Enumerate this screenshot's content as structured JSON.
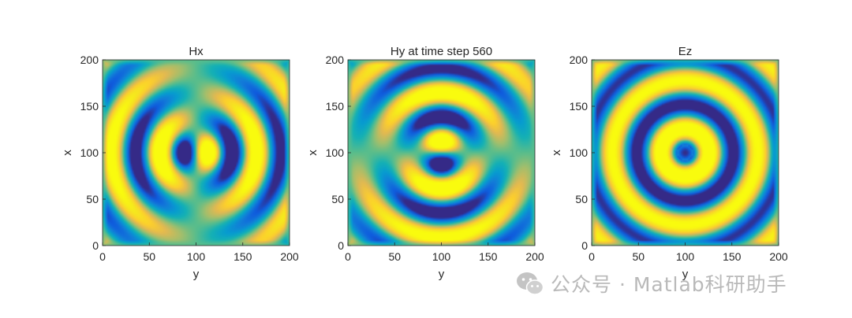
{
  "colors": {
    "colormap": "parula",
    "background": "#ffffff",
    "axis": "#262626",
    "watermark": "#b9b9b9"
  },
  "watermark": {
    "text": "公众号 · Matlab科研助手",
    "icon": "wechat-icon"
  },
  "chart_data": [
    {
      "type": "heatmap",
      "title": "Hx",
      "xlabel": "y",
      "ylabel": "x",
      "xlim": [
        0,
        200
      ],
      "ylim": [
        0,
        200
      ],
      "xticks": [
        "0",
        "50",
        "100",
        "150",
        "200"
      ],
      "yticks": [
        "0",
        "50",
        "100",
        "150",
        "200"
      ],
      "colormap": "parula",
      "field": "Hx",
      "source_center": [
        100,
        100
      ]
    },
    {
      "type": "heatmap",
      "title": "Hy at time step 560",
      "xlabel": "y",
      "ylabel": "x",
      "xlim": [
        0,
        200
      ],
      "ylim": [
        0,
        200
      ],
      "xticks": [
        "0",
        "50",
        "100",
        "150",
        "200"
      ],
      "yticks": [
        "0",
        "50",
        "100",
        "150",
        "200"
      ],
      "colormap": "parula",
      "field": "Hy",
      "time_step": 560,
      "source_center": [
        100,
        100
      ]
    },
    {
      "type": "heatmap",
      "title": "Ez",
      "xlabel": "y",
      "ylabel": "x",
      "xlim": [
        0,
        200
      ],
      "ylim": [
        0,
        200
      ],
      "xticks": [
        "0",
        "50",
        "100",
        "150",
        "200"
      ],
      "yticks": [
        "0",
        "50",
        "100",
        "150",
        "200"
      ],
      "colormap": "parula",
      "field": "Ez",
      "source_center": [
        100,
        100
      ]
    }
  ]
}
